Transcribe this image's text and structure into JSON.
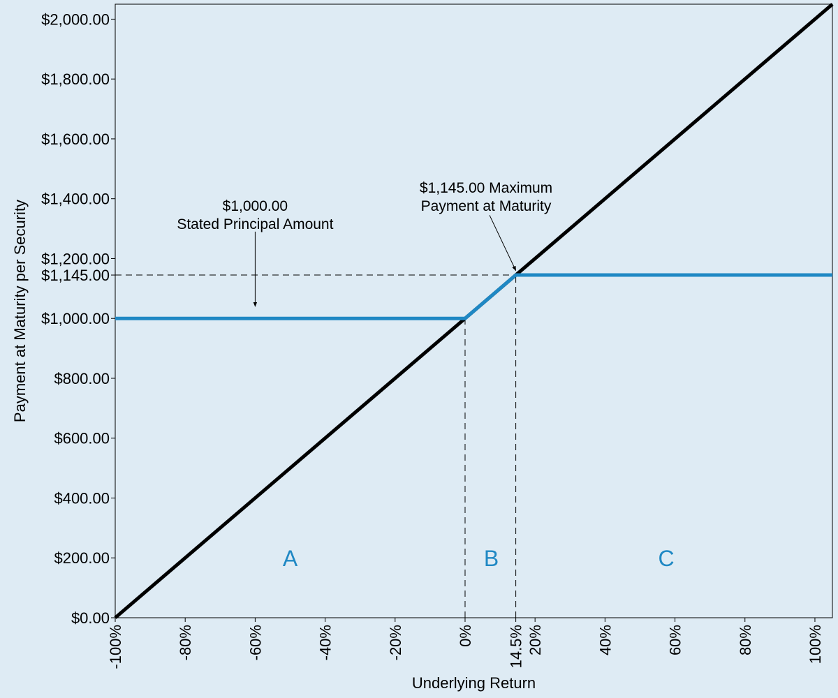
{
  "chart_data": {
    "type": "line",
    "xlabel": "Underlying Return",
    "ylabel": "Payment at Maturity per Security",
    "xlim": [
      -100,
      105
    ],
    "ylim": [
      0,
      2050
    ],
    "grid": false,
    "x_ticks": [
      {
        "value": -100,
        "label": "-100%"
      },
      {
        "value": -80,
        "label": "-80%"
      },
      {
        "value": -60,
        "label": "-60%"
      },
      {
        "value": -40,
        "label": "-40%"
      },
      {
        "value": -20,
        "label": "-20%"
      },
      {
        "value": 0,
        "label": "0%"
      },
      {
        "value": 14.5,
        "label": "14.5%"
      },
      {
        "value": 20,
        "label": "20%"
      },
      {
        "value": 40,
        "label": "40%"
      },
      {
        "value": 60,
        "label": "60%"
      },
      {
        "value": 80,
        "label": "80%"
      },
      {
        "value": 100,
        "label": "100%"
      }
    ],
    "y_ticks": [
      {
        "value": 0,
        "label": "$0.00"
      },
      {
        "value": 200,
        "label": "$200.00"
      },
      {
        "value": 400,
        "label": "$400.00"
      },
      {
        "value": 600,
        "label": "$600.00"
      },
      {
        "value": 800,
        "label": "$800.00"
      },
      {
        "value": 1000,
        "label": "$1,000.00"
      },
      {
        "value": 1145,
        "label": "$1,145.00"
      },
      {
        "value": 1200,
        "label": "$1,200.00"
      },
      {
        "value": 1400,
        "label": "$1,400.00"
      },
      {
        "value": 1600,
        "label": "$1,600.00"
      },
      {
        "value": 1800,
        "label": "$1,800.00"
      },
      {
        "value": 2000,
        "label": "$2,000.00"
      }
    ],
    "series": [
      {
        "color": "#000000",
        "x": [
          -100,
          105
        ],
        "y": [
          0,
          2050
        ]
      },
      {
        "color": "#1f88c4",
        "x": [
          -100,
          0,
          14.5,
          105
        ],
        "y": [
          1000,
          1000,
          1145,
          1145
        ]
      }
    ],
    "reference_lines": [
      {
        "orientation": "horizontal",
        "y": 1145,
        "x_from": -100,
        "x_to": 105,
        "style": "dashed"
      },
      {
        "orientation": "vertical",
        "x": 0,
        "y_from": 0,
        "y_to": 1000,
        "style": "dashed"
      },
      {
        "orientation": "vertical",
        "x": 14.5,
        "y_from": 0,
        "y_to": 1145,
        "style": "dashed"
      }
    ],
    "annotations": [
      {
        "lines": [
          "$1,000.00",
          "Stated Principal Amount"
        ],
        "text_x": -60,
        "text_y": 1360,
        "arrow_from": [
          -60,
          1290
        ],
        "arrow_to": [
          -60,
          1040
        ]
      },
      {
        "lines": [
          "$1,145.00 Maximum",
          "Payment at Maturity"
        ],
        "text_x": 6,
        "text_y": 1420,
        "arrow_from": [
          7,
          1345
        ],
        "arrow_to": [
          14.5,
          1160
        ]
      }
    ],
    "region_labels": [
      {
        "label": "A",
        "x": -50,
        "y": 200,
        "color": "#1f88c4"
      },
      {
        "label": "B",
        "x": 7.5,
        "y": 200,
        "color": "#1f88c4"
      },
      {
        "label": "C",
        "x": 57.5,
        "y": 200,
        "color": "#1f88c4"
      }
    ]
  }
}
